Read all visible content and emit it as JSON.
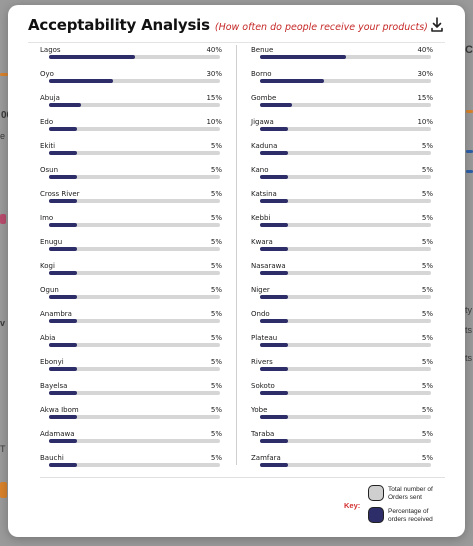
{
  "modal": {
    "title": "Acceptability Analysis",
    "subtitle": "(How often do people receive your products)"
  },
  "icons": {
    "download": "download-icon"
  },
  "colors": {
    "fill": "#2d2d69",
    "track": "#d6d6d6",
    "subtitle": "#c62828",
    "key_label": "#d32f2f"
  },
  "left_states": [
    {
      "name": "Lagos",
      "percent_label": "40%",
      "percent": 40
    },
    {
      "name": "Oyo",
      "percent_label": "30%",
      "percent": 30
    },
    {
      "name": "Abuja",
      "percent_label": "15%",
      "percent": 15
    },
    {
      "name": "Edo",
      "percent_label": "10%",
      "percent": 10
    },
    {
      "name": "Ekiti",
      "percent_label": "5%",
      "percent": 5
    },
    {
      "name": "Osun",
      "percent_label": "5%",
      "percent": 5
    },
    {
      "name": "Cross River",
      "percent_label": "5%",
      "percent": 5
    },
    {
      "name": "Imo",
      "percent_label": "5%",
      "percent": 5
    },
    {
      "name": "Enugu",
      "percent_label": "5%",
      "percent": 5
    },
    {
      "name": "Kogi",
      "percent_label": "5%",
      "percent": 5
    },
    {
      "name": "Ogun",
      "percent_label": "5%",
      "percent": 5
    },
    {
      "name": "Anambra",
      "percent_label": "5%",
      "percent": 5
    },
    {
      "name": "Abia",
      "percent_label": "5%",
      "percent": 5
    },
    {
      "name": "Ebonyi",
      "percent_label": "5%",
      "percent": 5
    },
    {
      "name": "Bayelsa",
      "percent_label": "5%",
      "percent": 5
    },
    {
      "name": "Akwa Ibom",
      "percent_label": "5%",
      "percent": 5
    },
    {
      "name": "Adamawa",
      "percent_label": "5%",
      "percent": 5
    },
    {
      "name": "Bauchi",
      "percent_label": "5%",
      "percent": 5
    }
  ],
  "right_states": [
    {
      "name": "Benue",
      "percent_label": "40%",
      "percent": 40
    },
    {
      "name": "Borno",
      "percent_label": "30%",
      "percent": 30
    },
    {
      "name": "Gombe",
      "percent_label": "15%",
      "percent": 15
    },
    {
      "name": "Jigawa",
      "percent_label": "10%",
      "percent": 10
    },
    {
      "name": "Kaduna",
      "percent_label": "5%",
      "percent": 5
    },
    {
      "name": "Kano",
      "percent_label": "5%",
      "percent": 5
    },
    {
      "name": "Katsina",
      "percent_label": "5%",
      "percent": 5
    },
    {
      "name": "Kebbi",
      "percent_label": "5%",
      "percent": 5
    },
    {
      "name": "Kwara",
      "percent_label": "5%",
      "percent": 5
    },
    {
      "name": "Nasarawa",
      "percent_label": "5%",
      "percent": 5
    },
    {
      "name": "Niger",
      "percent_label": "5%",
      "percent": 5
    },
    {
      "name": "Ondo",
      "percent_label": "5%",
      "percent": 5
    },
    {
      "name": "Plateau",
      "percent_label": "5%",
      "percent": 5
    },
    {
      "name": "Rivers",
      "percent_label": "5%",
      "percent": 5
    },
    {
      "name": "Sokoto",
      "percent_label": "5%",
      "percent": 5
    },
    {
      "name": "Yobe",
      "percent_label": "5%",
      "percent": 5
    },
    {
      "name": "Taraba",
      "percent_label": "5%",
      "percent": 5
    },
    {
      "name": "Zamfara",
      "percent_label": "5%",
      "percent": 5
    }
  ],
  "key": {
    "label": "Key:",
    "total_line1": "Total number of",
    "total_line2": "Orders sent",
    "pct_line1": "Percentage of",
    "pct_line2": "orders received"
  }
}
